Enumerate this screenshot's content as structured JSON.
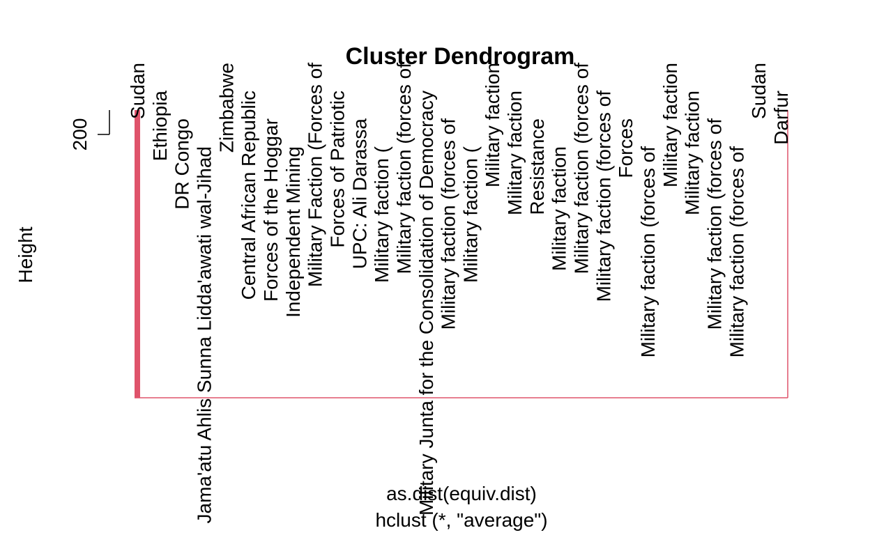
{
  "chart_data": {
    "type": "dendrogram",
    "title": "Cluster Dendrogram",
    "ylabel": "Height",
    "xlabel": "as.dist(equiv.dist)",
    "subtitle": "hclust (*, \"average\")",
    "color": "#df536b",
    "ylim": [
      0,
      218.5
    ],
    "yticks": [
      200
    ],
    "merge_height": 218.5,
    "categories": [
      "Sudan",
      "Ethiopia",
      "DR Congo",
      "Jama'atu Ahlis Sunna Lidda'awati wal-Jihad",
      "Zimbabwe",
      "Central African Republic",
      "Forces of the Hoggar",
      "Independent Mining",
      "Military Faction (Forces of",
      "Forces of Patriotic",
      "UPC: Ali Darassa",
      "Military faction (",
      "Military faction (forces of",
      "Military Junta for the Consolidation of Democracy",
      "Military faction (forces of",
      "Military faction (",
      "Military faction",
      "Military faction",
      "Resistance",
      "Military faction",
      "Military faction (forces of",
      "Military faction (forces of",
      "Forces",
      "Military faction (forces of",
      "Military faction",
      "Military faction",
      "Military faction (forces of",
      "Military faction (forces of",
      "Sudan",
      "Darfur"
    ]
  }
}
